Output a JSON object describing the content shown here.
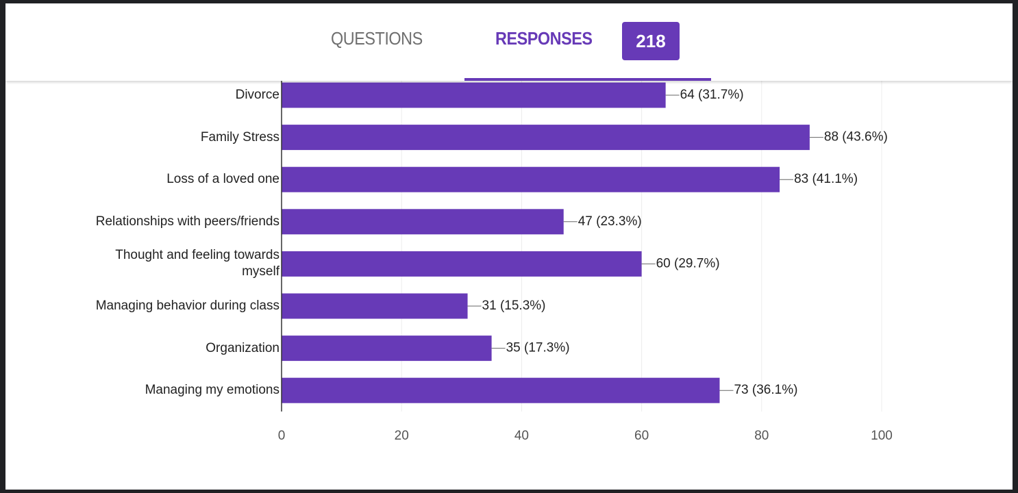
{
  "tabs": {
    "questions": "QUESTIONS",
    "responses": "RESPONSES",
    "count": 218
  },
  "chart_data": {
    "type": "bar",
    "orientation": "horizontal",
    "color": "#673ab7",
    "categories": [
      "Divorce",
      "Family Stress",
      "Loss of a loved one",
      "Relationships with peers/friends",
      "Thought and feeling towards myself",
      "Managing behavior during class",
      "Organization",
      "Managing my emotions"
    ],
    "values": [
      64,
      88,
      83,
      47,
      60,
      31,
      35,
      73
    ],
    "value_labels": [
      "64 (31.7%)",
      "88 (43.6%)",
      "83 (41.1%)",
      "47 (23.3%)",
      "60 (29.7%)",
      "31 (15.3%)",
      "35 (17.3%)",
      "73 (36.1%)"
    ],
    "xlim": [
      0,
      100
    ],
    "xticks": [
      0,
      20,
      40,
      60,
      80,
      100
    ],
    "grid": true
  }
}
